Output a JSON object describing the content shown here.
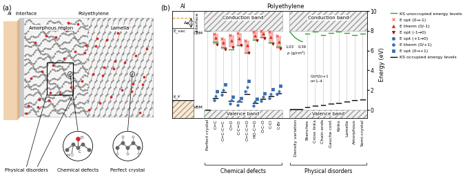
{
  "panel_a": {
    "label": "(a)",
    "al": "Al",
    "interface": "Interface",
    "polyethylene": "Polyethylene",
    "amorphous": "Amorphous region",
    "lamella": "Lamella",
    "physical": "Physical disorders",
    "chemical": "Chemical defects",
    "crystal": "Perfect crystal",
    "atoms": [
      "O",
      "C",
      "H"
    ]
  },
  "chart_data": {
    "type": "energy_level_diagram",
    "label": "(b)",
    "title": "Polyethylene",
    "y_label": "Energy (eV)",
    "ylim": [
      -0.8,
      10
    ],
    "yticks": [
      0,
      2,
      4,
      6,
      8,
      10
    ],
    "legend": "upper left",
    "interface": {
      "al_label": "Al",
      "interface_label": "Interface",
      "E_vac_label": "E_vac",
      "E_F_label": "E_F",
      "delta_phi_label": "Δφ",
      "E_vac": 8.3,
      "al_vacuum_level": 9.3,
      "E_F": 1.0
    },
    "bands": {
      "conduction_band": [
        8.0,
        10.0
      ],
      "valence_band": [
        -0.8,
        0.0
      ],
      "conduction_label": "Conduction band",
      "valence_label": "Valence band",
      "cbm_label": "CBM",
      "vbm_label": "VBM"
    },
    "series": [
      {
        "name": "KS unoccupied energy levels",
        "color": "#2ca02c",
        "marker": "line"
      },
      {
        "name": "E opt (0→-1)",
        "color": "#e0301e",
        "marker": "x"
      },
      {
        "name": "E therm (0/-1)",
        "color": "#e0301e",
        "marker": "triangle_up"
      },
      {
        "name": "E opt (-1→0)",
        "color": "#a11616",
        "marker": "triangle_down"
      },
      {
        "name": "E opt (+1→0)",
        "color": "#3a6fb0",
        "marker": "circle"
      },
      {
        "name": "E therm (0/+1)",
        "color": "#3a6fb0",
        "marker": "hexagon"
      },
      {
        "name": "E opt (0→+1)",
        "color": "#3a6fb0",
        "marker": "square"
      },
      {
        "name": "KS occupied energy levels",
        "color": "#000000",
        "marker": "line"
      }
    ],
    "groups": [
      {
        "name": "Chemical defects",
        "columns": [
          {
            "label": "Perfect crystal",
            "ks_unoccupied": 8.0,
            "ks_occupied": 0.0,
            "charged": null
          },
          {
            "label": "C=C",
            "ks_unoccupied": 6.9,
            "ks_occupied": 1.2,
            "charged": [
              7.7,
              7.3,
              6.6,
              1.0,
              1.4,
              1.9
            ]
          },
          {
            "label": "C=C-C=C",
            "ks_unoccupied": 6.3,
            "ks_occupied": 1.8,
            "charged": [
              7.2,
              6.8,
              6.1,
              1.5,
              2.0,
              2.6
            ]
          },
          {
            "label": "C=O",
            "ks_unoccupied": 6.1,
            "ks_occupied": 0.9,
            "charged": [
              7.6,
              7.0,
              6.3,
              0.6,
              1.0,
              1.3
            ]
          },
          {
            "label": "C-C=O",
            "ks_unoccupied": 6.5,
            "ks_occupied": 0.8,
            "charged": [
              7.8,
              7.2,
              6.5,
              0.5,
              0.9,
              1.2
            ]
          },
          {
            "label": "C=C-C=O",
            "ks_unoccupied": 5.8,
            "ks_occupied": 1.6,
            "charged": [
              7.0,
              6.5,
              5.8,
              1.9,
              2.3,
              2.9
            ]
          },
          {
            "label": "HO-C=O",
            "ks_unoccupied": 7.1,
            "ks_occupied": 0.7,
            "charged": [
              7.9,
              7.5,
              7.0,
              0.4,
              0.8,
              1.1
            ]
          },
          {
            "label": "O-C-O",
            "ks_unoccupied": 7.4,
            "ks_occupied": 1.1,
            "charged": [
              8.0,
              7.7,
              7.2,
              0.9,
              1.3,
              1.7
            ]
          },
          {
            "label": "C-Cl",
            "ks_unoccupied": 6.8,
            "ks_occupied": 1.4,
            "charged": [
              7.9,
              7.4,
              6.7,
              1.2,
              1.6,
              2.1
            ]
          },
          {
            "label": "C-Br",
            "ks_unoccupied": 6.4,
            "ks_occupied": 1.7,
            "charged": [
              7.5,
              6.9,
              6.2,
              1.6,
              1.9,
              2.4
            ]
          }
        ]
      },
      {
        "name": "Physical disorders",
        "columns": [
          {
            "label": "Density variation",
            "rho": [
              1.03,
              0.9,
              0.75,
              0.6,
              0.45,
              0.36
            ],
            "ks_unoccupied": [
              7.9,
              7.6,
              7.3,
              7.1,
              6.95,
              6.9
            ],
            "ks_occupied": 0.1,
            "rho_lim": [
              1.03,
              0.36
            ],
            "rho_ticks": [
              1.03,
              0.36
            ],
            "rho_label": "ρ (g/cm³)"
          },
          {
            "label": "Branches",
            "ks_unoccupied": 7.7,
            "ks_occupied": 0.3,
            "note": [
              "CnH2n+1",
              "n=1–4"
            ]
          },
          {
            "label": "Cross links",
            "ks_unoccupied": 7.9,
            "ks_occupied": 0.4
          },
          {
            "label": "Chain ends",
            "ks_unoccupied": 7.6,
            "ks_occupied": 0.5
          },
          {
            "label": "Gauche conf.",
            "ks_unoccupied": 7.8,
            "ks_occupied": 0.6
          },
          {
            "label": "Kinks",
            "ks_unoccupied": 7.9,
            "ks_occupied": 0.7
          },
          {
            "label": "Lamella",
            "ks_unoccupied": 7.8,
            "ks_occupied": 0.8
          },
          {
            "label": "Amorphous",
            "ks_unoccupied": 7.6,
            "ks_occupied": 0.95
          },
          {
            "label": "Semi-crystal",
            "ks_unoccupied": 7.7,
            "ks_occupied": 1.05
          }
        ]
      }
    ]
  }
}
